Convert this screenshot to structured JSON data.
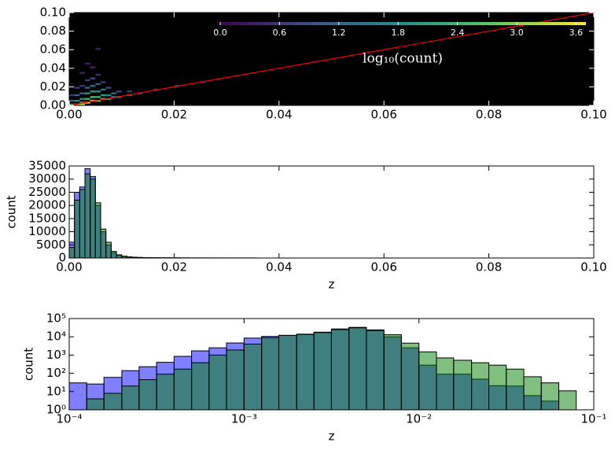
{
  "chart_data": [
    {
      "type": "hist2d",
      "x": [
        0.0005,
        0.0005,
        0.0005,
        0.0015,
        0.0015,
        0.0015,
        0.0015,
        0.0025,
        0.0025,
        0.0025,
        0.0025,
        0.0025,
        0.0025,
        0.0035,
        0.0035,
        0.0035,
        0.0035,
        0.0035,
        0.0035,
        0.0045,
        0.0045,
        0.0045,
        0.0045,
        0.0045,
        0.0045,
        0.0055,
        0.0055,
        0.0055,
        0.0055,
        0.0055,
        0.0055,
        0.0065,
        0.0065,
        0.0065,
        0.0065,
        0.0075,
        0.0075,
        0.0075,
        0.0085,
        0.0085,
        0.0095,
        0.0095,
        0.0115,
        0.0115,
        0.0135,
        0.0165,
        0.0205,
        0.0255
      ],
      "y": [
        0.001,
        0.005,
        0.011,
        0.001,
        0.005,
        0.011,
        0.019,
        0.001,
        0.003,
        0.007,
        0.013,
        0.021,
        0.035,
        0.003,
        0.007,
        0.013,
        0.019,
        0.027,
        0.045,
        0.005,
        0.009,
        0.015,
        0.021,
        0.029,
        0.041,
        0.005,
        0.009,
        0.015,
        0.023,
        0.033,
        0.061,
        0.007,
        0.011,
        0.017,
        0.025,
        0.007,
        0.011,
        0.019,
        0.009,
        0.013,
        0.009,
        0.015,
        0.011,
        0.015,
        0.013,
        0.017,
        0.021,
        0.025
      ],
      "values": [
        2.0,
        1.2,
        0.6,
        3.0,
        1.8,
        1.2,
        0.6,
        3.4,
        2.4,
        1.8,
        1.2,
        0.6,
        0.3,
        3.6,
        2.4,
        1.8,
        1.2,
        0.6,
        0.3,
        3.2,
        2.6,
        2.0,
        1.4,
        0.8,
        0.3,
        3.0,
        2.4,
        1.8,
        1.0,
        0.5,
        0.3,
        2.6,
        2.0,
        1.4,
        0.6,
        2.2,
        1.6,
        0.8,
        1.8,
        1.2,
        1.4,
        0.8,
        1.0,
        0.6,
        0.8,
        0.6,
        0.4,
        0.3
      ],
      "clim": [
        0,
        3.7
      ],
      "colorbar_ticks": [
        {
          "value": 0,
          "label": "0.0"
        },
        0.6,
        1.2,
        1.8,
        2.4,
        {
          "value": 3,
          "label": "3.0"
        },
        3.6
      ],
      "colorbar_label": "log₁₀(count)",
      "line": {
        "x": [
          0,
          0.1
        ],
        "y": [
          0,
          0.1
        ],
        "color": "#ff0000"
      },
      "xlim": [
        0,
        0.1
      ],
      "ylim": [
        0,
        0.1
      ],
      "xticks": [
        {
          "value": 0,
          "label": "0.00"
        },
        0.02,
        0.04,
        0.06,
        0.08,
        {
          "value": 0.1,
          "label": "0.10"
        }
      ],
      "yticks": [
        {
          "value": 0,
          "label": "0.00"
        },
        0.02,
        0.04,
        0.06,
        0.08,
        {
          "value": 0.1,
          "label": "0.10"
        }
      ]
    },
    {
      "type": "histogram",
      "xlabel": "z",
      "ylabel": "count",
      "bins": [
        0,
        0.001,
        0.002,
        0.003,
        0.004,
        0.005,
        0.006,
        0.007,
        0.008,
        0.009,
        0.01,
        0.011,
        0.012,
        0.013,
        0.014,
        0.015,
        0.016,
        0.017,
        0.018,
        0.019,
        0.02,
        0.021,
        0.022,
        0.023,
        0.024,
        0.025,
        0.026,
        0.027,
        0.028,
        0.029,
        0.03,
        0.031,
        0.032,
        0.033,
        0.034,
        0.035,
        0.036
      ],
      "series": [
        {
          "color": "#0000ff",
          "opacity": 0.5,
          "values": [
            6000,
            25000,
            27000,
            34000,
            31000,
            20000,
            10000,
            5000,
            2000,
            1000,
            600,
            400,
            250,
            200,
            150,
            120,
            100,
            80,
            70,
            60,
            50,
            40,
            40,
            30,
            30,
            30,
            25,
            25,
            20,
            20,
            20,
            20,
            15,
            15,
            15,
            15
          ]
        },
        {
          "color": "#008000",
          "opacity": 0.5,
          "values": [
            4000,
            22000,
            26000,
            32000,
            30000,
            21000,
            11000,
            6000,
            2500,
            1200,
            700,
            450,
            300,
            200,
            150,
            120,
            100,
            80,
            70,
            60,
            50,
            40,
            35,
            30,
            25,
            25,
            20,
            20,
            20,
            15,
            15,
            15,
            15,
            10,
            10,
            10
          ]
        }
      ],
      "xlim": [
        0,
        0.1
      ],
      "ylim": [
        0,
        35000
      ],
      "xticks": [
        {
          "value": 0,
          "label": "0.00"
        },
        0.02,
        0.04,
        0.06,
        0.08,
        {
          "value": 0.1,
          "label": "0.10"
        }
      ],
      "yticks": [
        0,
        5000,
        10000,
        15000,
        20000,
        25000,
        30000,
        35000
      ]
    },
    {
      "type": "histogram",
      "xlabel": "z",
      "ylabel": "count",
      "xscale": "log",
      "yscale": "log",
      "bins": [
        0.0001,
        0.000126,
        0.000158,
        0.0002,
        0.000251,
        0.000316,
        0.000398,
        0.000501,
        0.000631,
        0.000794,
        0.001,
        0.00126,
        0.00158,
        0.002,
        0.00251,
        0.00316,
        0.00398,
        0.00501,
        0.00631,
        0.00794,
        0.01,
        0.0126,
        0.0158,
        0.02,
        0.0251,
        0.0316,
        0.0398,
        0.0501,
        0.0631,
        0.0794,
        0.1
      ],
      "series": [
        {
          "color": "#0000ff",
          "opacity": 0.5,
          "values": [
            30,
            26,
            60,
            140,
            230,
            400,
            850,
            1700,
            2500,
            4600,
            8500,
            10500,
            12000,
            14000,
            18000,
            27000,
            33000,
            24000,
            10000,
            2500,
            280,
            90,
            90,
            48,
            21,
            20,
            6,
            3,
            null,
            null
          ]
        },
        {
          "color": "#008000",
          "opacity": 0.5,
          "values": [
            null,
            4,
            8,
            20,
            45,
            90,
            170,
            380,
            1000,
            1900,
            4000,
            9000,
            12000,
            13500,
            17000,
            25000,
            31000,
            22000,
            13000,
            4500,
            1500,
            700,
            520,
            380,
            280,
            170,
            65,
            30,
            11,
            null
          ]
        }
      ],
      "xlim": [
        0.0001,
        0.1
      ],
      "ylim": [
        1,
        100000
      ],
      "xticks": [
        {
          "value": 0.0001,
          "label": "10⁻⁴"
        },
        {
          "value": 0.001,
          "label": "10⁻³"
        },
        {
          "value": 0.01,
          "label": "10⁻²"
        },
        {
          "value": 0.1,
          "label": "10⁻¹"
        }
      ],
      "yticks": [
        {
          "value": 1,
          "label": "10⁰"
        },
        {
          "value": 10,
          "label": "10¹"
        },
        {
          "value": 100,
          "label": "10²"
        },
        {
          "value": 1000,
          "label": "10³"
        },
        {
          "value": 10000,
          "label": "10⁴"
        },
        {
          "value": 100000,
          "label": "10⁵"
        }
      ]
    }
  ]
}
